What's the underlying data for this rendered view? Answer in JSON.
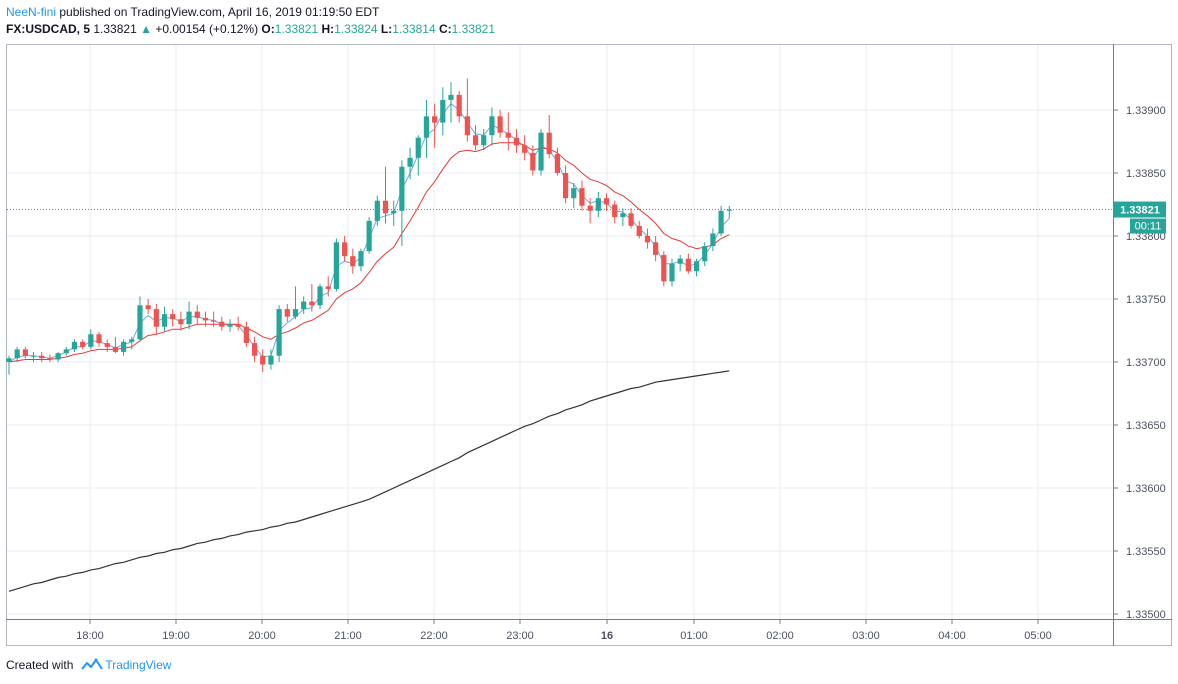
{
  "header": {
    "author": "NeeN-fini",
    "published_text": " published on TradingView.com, April 16, 2019 01:19:50 EDT",
    "symbol": "FX:USDCAD, 5",
    "last": "1.33821",
    "change_arrow": "▲",
    "change": "+0.00154 (+0.12%)",
    "o_label": "O:",
    "o_value": "1.33821",
    "h_label": "H:",
    "h_value": "1.33824",
    "l_label": "L:",
    "l_value": "1.33814",
    "c_label": "C:",
    "c_value": "1.33821"
  },
  "footer": {
    "created_with": "Created with",
    "brand": "TradingView"
  },
  "colors": {
    "up": "#26a69a",
    "down": "#ef5350",
    "ema_fast": "#6fa8dc",
    "ema_slow": "#e53935",
    "sma_long": "#333333",
    "grid": "#e6ecf0",
    "price_line": "#26a69a",
    "brand": "#2196f3"
  },
  "chart_data": {
    "type": "candlestick",
    "symbol": "FX:USDCAD",
    "timeframe_minutes": 5,
    "ylim": [
      1.3349,
      1.3394
    ],
    "y_ticks": [
      "1.33500",
      "1.33550",
      "1.33600",
      "1.33650",
      "1.33700",
      "1.33750",
      "1.33800",
      "1.33850",
      "1.33900"
    ],
    "x_ticks": [
      "18:00",
      "19:00",
      "20:00",
      "21:00",
      "22:00",
      "23:00",
      "16",
      "01:00",
      "02:00",
      "03:00",
      "04:00",
      "05:00"
    ],
    "last_price_label": "1.33821",
    "countdown_label": "00:11",
    "candles": [
      [
        1.337,
        1.33705,
        1.3369,
        1.33703
      ],
      [
        1.33703,
        1.33712,
        1.337,
        1.3371
      ],
      [
        1.3371,
        1.33712,
        1.33703,
        1.33705
      ],
      [
        1.33705,
        1.33708,
        1.337,
        1.33705
      ],
      [
        1.33705,
        1.33708,
        1.337,
        1.33703
      ],
      [
        1.33703,
        1.33706,
        1.337,
        1.33702
      ],
      [
        1.33702,
        1.33708,
        1.337,
        1.33707
      ],
      [
        1.33707,
        1.33712,
        1.33705,
        1.3371
      ],
      [
        1.3371,
        1.33718,
        1.33708,
        1.33716
      ],
      [
        1.33716,
        1.33718,
        1.3371,
        1.33712
      ],
      [
        1.33712,
        1.33726,
        1.3371,
        1.33722
      ],
      [
        1.33722,
        1.33724,
        1.33712,
        1.33715
      ],
      [
        1.33715,
        1.33718,
        1.33708,
        1.33712
      ],
      [
        1.33712,
        1.3372,
        1.33707,
        1.33708
      ],
      [
        1.33708,
        1.33718,
        1.33705,
        1.33716
      ],
      [
        1.33716,
        1.3372,
        1.3371,
        1.33718
      ],
      [
        1.33718,
        1.33752,
        1.33716,
        1.33745
      ],
      [
        1.33745,
        1.3375,
        1.33738,
        1.33742
      ],
      [
        1.33742,
        1.33746,
        1.33722,
        1.33728
      ],
      [
        1.33728,
        1.33744,
        1.33724,
        1.33738
      ],
      [
        1.33738,
        1.33742,
        1.33728,
        1.33734
      ],
      [
        1.33734,
        1.3374,
        1.33725,
        1.3373
      ],
      [
        1.3373,
        1.33748,
        1.33726,
        1.3374
      ],
      [
        1.3374,
        1.33745,
        1.3373,
        1.33735
      ],
      [
        1.33735,
        1.3374,
        1.33728,
        1.33733
      ],
      [
        1.33733,
        1.3374,
        1.33728,
        1.33732
      ],
      [
        1.33732,
        1.33736,
        1.33725,
        1.33728
      ],
      [
        1.33728,
        1.33734,
        1.33724,
        1.3373
      ],
      [
        1.3373,
        1.33736,
        1.33725,
        1.33728
      ],
      [
        1.33728,
        1.33732,
        1.33712,
        1.33715
      ],
      [
        1.33715,
        1.3372,
        1.337,
        1.33705
      ],
      [
        1.33705,
        1.3371,
        1.33692,
        1.33698
      ],
      [
        1.33698,
        1.3371,
        1.33694,
        1.33705
      ],
      [
        1.33705,
        1.33745,
        1.337,
        1.33742
      ],
      [
        1.33742,
        1.33746,
        1.33732,
        1.33736
      ],
      [
        1.33736,
        1.3376,
        1.33734,
        1.33742
      ],
      [
        1.33742,
        1.33752,
        1.33738,
        1.33748
      ],
      [
        1.33748,
        1.33762,
        1.3374,
        1.33745
      ],
      [
        1.33745,
        1.33762,
        1.33742,
        1.3376
      ],
      [
        1.3376,
        1.33768,
        1.33752,
        1.33758
      ],
      [
        1.33758,
        1.33798,
        1.33756,
        1.33795
      ],
      [
        1.33795,
        1.338,
        1.3378,
        1.33784
      ],
      [
        1.33784,
        1.3379,
        1.3377,
        1.33776
      ],
      [
        1.33776,
        1.3379,
        1.33772,
        1.33788
      ],
      [
        1.33788,
        1.33815,
        1.33786,
        1.33812
      ],
      [
        1.33812,
        1.33832,
        1.33808,
        1.33828
      ],
      [
        1.33828,
        1.33855,
        1.3381,
        1.33818
      ],
      [
        1.33818,
        1.33828,
        1.33808,
        1.3382
      ],
      [
        1.3382,
        1.3386,
        1.33792,
        1.33855
      ],
      [
        1.33855,
        1.3387,
        1.33845,
        1.33862
      ],
      [
        1.33862,
        1.3388,
        1.33848,
        1.33878
      ],
      [
        1.33878,
        1.33908,
        1.33862,
        1.33895
      ],
      [
        1.33895,
        1.33905,
        1.3387,
        1.3389
      ],
      [
        1.3389,
        1.33918,
        1.3388,
        1.33908
      ],
      [
        1.33908,
        1.33922,
        1.3389,
        1.33912
      ],
      [
        1.33912,
        1.33915,
        1.3389,
        1.33895
      ],
      [
        1.33895,
        1.33925,
        1.33875,
        1.3388
      ],
      [
        1.3388,
        1.33888,
        1.33868,
        1.33872
      ],
      [
        1.33872,
        1.33885,
        1.33868,
        1.3388
      ],
      [
        1.3388,
        1.33902,
        1.33872,
        1.33895
      ],
      [
        1.33895,
        1.339,
        1.33878,
        1.33882
      ],
      [
        1.33882,
        1.33898,
        1.33868,
        1.33878
      ],
      [
        1.33878,
        1.33885,
        1.33866,
        1.33872
      ],
      [
        1.33872,
        1.3388,
        1.3386,
        1.33866
      ],
      [
        1.33866,
        1.33872,
        1.33848,
        1.33852
      ],
      [
        1.33852,
        1.33885,
        1.33848,
        1.33882
      ],
      [
        1.33882,
        1.33896,
        1.33862,
        1.33865
      ],
      [
        1.33865,
        1.3387,
        1.33848,
        1.3385
      ],
      [
        1.3385,
        1.33856,
        1.33826,
        1.3383
      ],
      [
        1.3383,
        1.33842,
        1.33822,
        1.33838
      ],
      [
        1.33838,
        1.33844,
        1.3382,
        1.33824
      ],
      [
        1.33824,
        1.3383,
        1.3381,
        1.3382
      ],
      [
        1.3382,
        1.33835,
        1.33815,
        1.3383
      ],
      [
        1.3383,
        1.33834,
        1.3382,
        1.33825
      ],
      [
        1.33825,
        1.33828,
        1.3381,
        1.33815
      ],
      [
        1.33815,
        1.33822,
        1.33808,
        1.33818
      ],
      [
        1.33818,
        1.33822,
        1.33806,
        1.33808
      ],
      [
        1.33808,
        1.33812,
        1.33798,
        1.338
      ],
      [
        1.338,
        1.33806,
        1.3379,
        1.33795
      ],
      [
        1.33795,
        1.338,
        1.3378,
        1.33785
      ],
      [
        1.33785,
        1.33788,
        1.3376,
        1.33764
      ],
      [
        1.33764,
        1.33782,
        1.3376,
        1.33778
      ],
      [
        1.33778,
        1.33785,
        1.33772,
        1.33782
      ],
      [
        1.33782,
        1.33786,
        1.3377,
        1.33772
      ],
      [
        1.33772,
        1.33782,
        1.33768,
        1.3378
      ],
      [
        1.3378,
        1.33795,
        1.33776,
        1.33792
      ],
      [
        1.33792,
        1.33806,
        1.33788,
        1.33802
      ],
      [
        1.33802,
        1.33824,
        1.338,
        1.3382
      ],
      [
        1.3382,
        1.33824,
        1.33814,
        1.33821
      ]
    ],
    "series": [
      {
        "type": "line",
        "values": [
          1.337,
          1.33704,
          1.33705,
          1.33705,
          1.33704,
          1.33703,
          1.33705,
          1.33708,
          1.33712,
          1.33712,
          1.33717,
          1.33716,
          1.33714,
          1.33711,
          1.33714,
          1.33716,
          1.33731,
          1.33737,
          1.33732,
          1.33735,
          1.33735,
          1.33732,
          1.33736,
          1.33736,
          1.33734,
          1.33733,
          1.3373,
          1.3373,
          1.33729,
          1.33721,
          1.33712,
          1.33704,
          1.33705,
          1.33725,
          1.33731,
          1.33736,
          1.33742,
          1.33743,
          1.33752,
          1.33755,
          1.33776,
          1.3378,
          1.33778,
          1.33783,
          1.33798,
          1.33814,
          1.33816,
          1.33818,
          1.33837,
          1.3385,
          1.33865,
          1.3388,
          1.33885,
          1.33897,
          1.33905,
          1.339,
          1.3389,
          1.33881,
          1.3388,
          1.33888,
          1.33885,
          1.33881,
          1.33876,
          1.33871,
          1.33861,
          1.33872,
          1.33868,
          1.33859,
          1.33844,
          1.33841,
          1.33832,
          1.33826,
          1.33828,
          1.33826,
          1.3382,
          1.33819,
          1.33813,
          1.33806,
          1.338,
          1.33792,
          1.33778,
          1.33778,
          1.3378,
          1.33776,
          1.33778,
          1.33785,
          1.33794,
          1.33807,
          1.33814
        ]
      },
      {
        "type": "line",
        "values": [
          1.337,
          1.33701,
          1.33702,
          1.33702,
          1.33702,
          1.33702,
          1.33703,
          1.33704,
          1.33706,
          1.33707,
          1.33709,
          1.3371,
          1.3371,
          1.3371,
          1.33711,
          1.33712,
          1.33717,
          1.33721,
          1.33722,
          1.33724,
          1.33726,
          1.33726,
          1.33728,
          1.3373,
          1.3373,
          1.3373,
          1.3373,
          1.3373,
          1.3373,
          1.33727,
          1.33724,
          1.3372,
          1.33718,
          1.33722,
          1.33724,
          1.33727,
          1.33731,
          1.33733,
          1.33737,
          1.33741,
          1.3375,
          1.33755,
          1.33758,
          1.33763,
          1.33771,
          1.3378,
          1.33786,
          1.33791,
          1.33802,
          1.33812,
          1.33823,
          1.33835,
          1.33843,
          1.33853,
          1.33862,
          1.33867,
          1.33868,
          1.33867,
          1.33869,
          1.33873,
          1.33874,
          1.33874,
          1.33874,
          1.33872,
          1.33868,
          1.3387,
          1.33869,
          1.33866,
          1.3386,
          1.33856,
          1.3385,
          1.33845,
          1.33843,
          1.3384,
          1.33835,
          1.33832,
          1.33827,
          1.33821,
          1.33816,
          1.3381,
          1.33802,
          1.33798,
          1.33796,
          1.33792,
          1.3379,
          1.33791,
          1.33793,
          1.33798,
          1.33801
        ]
      },
      {
        "type": "line",
        "values": [
          1.33518,
          1.3352,
          1.33522,
          1.33524,
          1.33525,
          1.33527,
          1.33529,
          1.3353,
          1.33532,
          1.33533,
          1.33535,
          1.33536,
          1.33538,
          1.3354,
          1.33541,
          1.33543,
          1.33545,
          1.33546,
          1.33548,
          1.33549,
          1.33551,
          1.33552,
          1.33554,
          1.33556,
          1.33557,
          1.33559,
          1.3356,
          1.33562,
          1.33563,
          1.33565,
          1.33566,
          1.33567,
          1.33569,
          1.3357,
          1.33572,
          1.33573,
          1.33575,
          1.33577,
          1.33579,
          1.33581,
          1.33583,
          1.33585,
          1.33587,
          1.33589,
          1.33591,
          1.33594,
          1.33597,
          1.336,
          1.33603,
          1.33606,
          1.33609,
          1.33612,
          1.33615,
          1.33618,
          1.33621,
          1.33624,
          1.33628,
          1.33631,
          1.33634,
          1.33637,
          1.3364,
          1.33643,
          1.33646,
          1.33649,
          1.33651,
          1.33654,
          1.33657,
          1.33659,
          1.33662,
          1.33664,
          1.33666,
          1.33669,
          1.33671,
          1.33673,
          1.33675,
          1.33677,
          1.33679,
          1.3368,
          1.33682,
          1.33684,
          1.33685,
          1.33686,
          1.33687,
          1.33688,
          1.33689,
          1.3369,
          1.33691,
          1.33692,
          1.33693
        ]
      }
    ]
  }
}
